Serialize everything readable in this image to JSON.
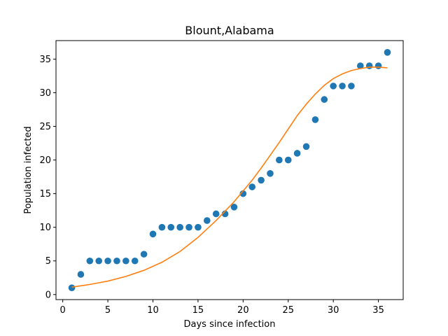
{
  "chart_data": {
    "type": "scatter",
    "title": "Blount,Alabama",
    "xlabel": "Days since infection",
    "ylabel": "Population infected",
    "xlim": [
      -0.75,
      37.75
    ],
    "ylim": [
      -0.75,
      37.75
    ],
    "xticks": [
      0,
      5,
      10,
      15,
      20,
      25,
      30,
      35
    ],
    "yticks": [
      0,
      5,
      10,
      15,
      20,
      25,
      30,
      35
    ],
    "grid": false,
    "series": [
      {
        "kind": "scatter",
        "color": "#1f77b4",
        "x": [
          1,
          2,
          3,
          4,
          5,
          6,
          7,
          8,
          9,
          10,
          11,
          12,
          13,
          14,
          15,
          16,
          17,
          18,
          19,
          20,
          21,
          22,
          23,
          24,
          25,
          26,
          27,
          28,
          29,
          30,
          31,
          32,
          33,
          34,
          35,
          36
        ],
        "y": [
          1,
          3,
          5,
          5,
          5,
          5,
          5,
          5,
          6,
          9,
          10,
          10,
          10,
          10,
          10,
          11,
          12,
          12,
          13,
          15,
          16,
          17,
          18,
          20,
          20,
          21,
          22,
          26,
          29,
          31,
          31,
          31,
          34,
          34,
          34,
          36
        ]
      },
      {
        "kind": "line",
        "color": "#ff7f0e",
        "x": [
          1,
          3,
          5,
          7,
          9,
          11,
          13,
          15,
          17,
          19,
          21,
          22,
          23,
          24,
          25,
          26,
          27,
          28,
          29,
          30,
          31,
          32,
          33,
          34,
          35,
          36
        ],
        "y": [
          1.1,
          1.5,
          2.0,
          2.7,
          3.6,
          4.8,
          6.4,
          8.5,
          11.0,
          13.8,
          17.0,
          18.8,
          20.7,
          22.6,
          24.6,
          26.6,
          28.3,
          29.8,
          31.1,
          32.1,
          32.8,
          33.3,
          33.6,
          33.8,
          33.8,
          33.7
        ]
      }
    ]
  }
}
